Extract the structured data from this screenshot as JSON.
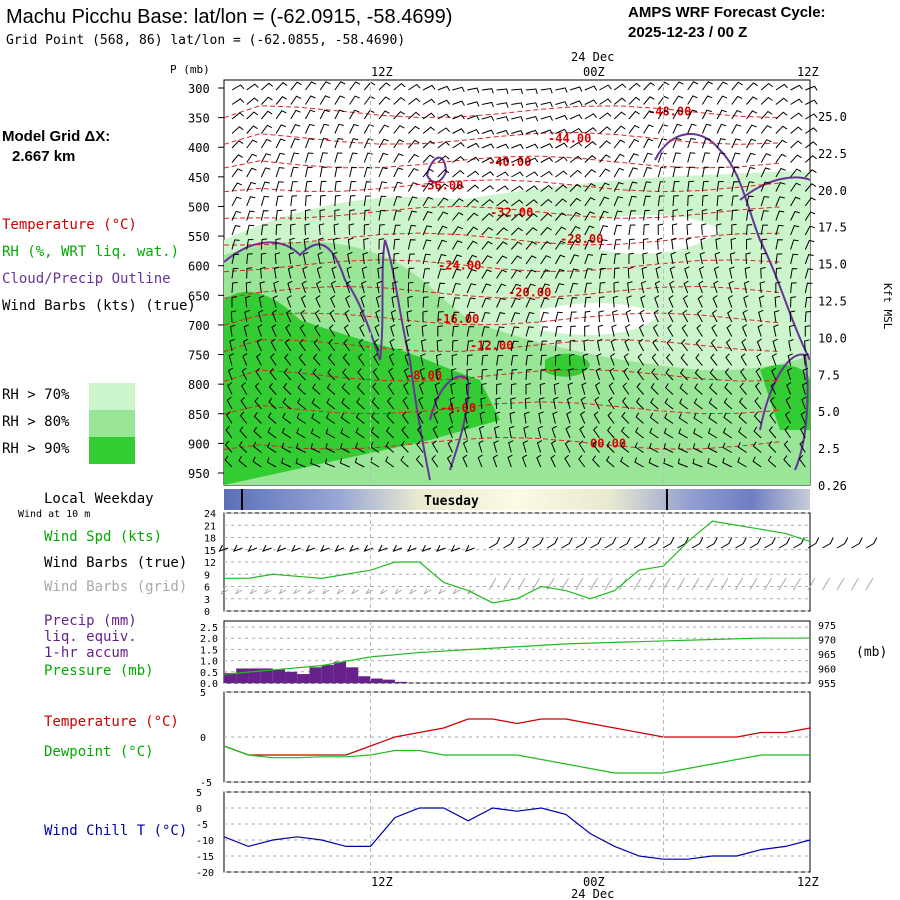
{
  "header": {
    "title": "Machu Picchu Base:  lat/lon = (-62.0915, -58.4699)",
    "subtitle": "Grid Point (568, 86) lat/lon = (-62.0855, -58.4690)",
    "cycle_line1": "AMPS WRF Forecast Cycle:",
    "cycle_line2": "2025-12-23 / 00  Z"
  },
  "left_panel": {
    "model_grid_label": "Model Grid ΔX:",
    "model_grid_value": "2.667 km",
    "legend_temperature": "Temperature (°C)",
    "legend_rh": "RH (%, WRT liq. wat.)",
    "legend_cloud": "Cloud/Precip Outline",
    "legend_wind": "Wind Barbs (kts) (true)",
    "rh_70": "RH > 70%",
    "rh_80": "RH > 80%",
    "rh_90": "RH > 90%",
    "local_weekday": "Local Weekday",
    "wind_at_10m": "Wind at 10 m",
    "wind_spd": "Wind Spd (kts)",
    "wind_barbs_true": "Wind Barbs (true)",
    "wind_barbs_grid": "Wind Barbs (grid)",
    "precip_line1": "Precip (mm)",
    "precip_line2": "liq. equiv.",
    "precip_line3": "1-hr accum",
    "pressure": "Pressure (mb)",
    "temperature": "Temperature (°C)",
    "dewpoint": "Dewpoint (°C)",
    "wind_chill": "Wind Chill T (°C)"
  },
  "axes": {
    "p_label": "P (mb)",
    "time_top": [
      "12Z",
      "00Z",
      "12Z"
    ],
    "date_label": "24 Dec",
    "time_bottom": [
      "12Z",
      "00Z",
      "12Z"
    ],
    "pressure_ticks": [
      "300",
      "350",
      "400",
      "450",
      "500",
      "550",
      "600",
      "650",
      "700",
      "750",
      "800",
      "850",
      "900",
      "950"
    ],
    "kft_ticks": [
      "25.0",
      "22.5",
      "20.0",
      "17.5",
      "15.0",
      "12.5",
      "10.0",
      "7.5",
      "5.0",
      "2.5",
      "0.26"
    ],
    "kft_label": "Kft MSL",
    "weekday": "Tuesday",
    "wind_ticks": [
      "24",
      "21",
      "18",
      "15",
      "12",
      "9",
      "6",
      "3",
      "0"
    ],
    "precip_ticks": [
      "2.5",
      "2.0",
      "1.5",
      "1.0",
      "0.5",
      "0.0"
    ],
    "pres_ticks": [
      "975",
      "970",
      "965",
      "960",
      "955"
    ],
    "pres_unit": "(mb)",
    "temp_ticks": [
      "5",
      "0",
      "-5"
    ],
    "chill_ticks": [
      "5",
      "0",
      "-5",
      "-10",
      "-15",
      "-20"
    ]
  },
  "colors": {
    "temperature": "#cc0000",
    "rh_label": "#00aa00",
    "cloud": "#663399",
    "rh70": "#ccf5cc",
    "rh80": "#99e699",
    "rh90": "#33cc33",
    "wind_chill": "#0000aa",
    "pressure": "#22bb22",
    "dewpoint": "#22bb22",
    "grid_barbs": "#aaaaaa",
    "precip": "#662288"
  },
  "chart_data": [
    {
      "type": "heatmap",
      "panel": "Time-height cross section",
      "ylabel": "P (mb)",
      "ylim": [
        300,
        970
      ],
      "secondary_ylabel": "Kft MSL",
      "temperature_contour_labels": [
        "-48.00",
        "-44.00",
        "-40.00",
        "-36.00",
        "-32.00",
        "-28.00",
        "-24.00",
        "-20.00",
        "-16.00",
        "-12.00",
        "-8.00",
        "-4.00",
        "00.00"
      ]
    },
    {
      "type": "line",
      "panel": "Wind at 10 m",
      "ylim": [
        0,
        24
      ],
      "series": [
        {
          "name": "Wind Spd (kts)",
          "x": [
            0,
            2,
            4,
            6,
            8,
            10,
            12,
            14,
            16,
            18,
            20,
            22,
            24,
            26,
            28,
            30,
            32,
            34,
            36,
            38,
            40,
            42,
            44,
            46,
            48
          ],
          "values": [
            8,
            8,
            9,
            8.5,
            8,
            9,
            10,
            12,
            12,
            7,
            5,
            2,
            3,
            6,
            5,
            3,
            5,
            10,
            11,
            17,
            22,
            21,
            20,
            19,
            17
          ]
        }
      ]
    },
    {
      "type": "bar",
      "panel": "Precip (mm) liq. equiv. 1-hr accum",
      "ylim": [
        0,
        2.5
      ],
      "x": [
        0,
        1,
        2,
        3,
        4,
        5,
        6,
        7,
        8,
        9,
        10,
        11,
        12,
        13,
        14
      ],
      "values": [
        0.45,
        0.65,
        0.65,
        0.65,
        0.6,
        0.5,
        0.4,
        0.7,
        0.8,
        0.95,
        0.7,
        0.3,
        0.2,
        0.15,
        0.05
      ]
    },
    {
      "type": "line",
      "panel": "Pressure (mb)",
      "ylim": [
        955,
        975
      ],
      "series": [
        {
          "name": "Pressure (mb)",
          "x": [
            0,
            4,
            8,
            12,
            16,
            20,
            24,
            28,
            32,
            36,
            40,
            44,
            48
          ],
          "values": [
            958,
            959.5,
            961,
            964,
            965.5,
            966.5,
            967.5,
            968.5,
            969,
            969.5,
            970,
            970.5,
            970.5
          ]
        }
      ]
    },
    {
      "type": "line",
      "panel": "Temperature / Dewpoint",
      "ylim": [
        -5,
        5
      ],
      "series": [
        {
          "name": "Temperature (°C)",
          "x": [
            0,
            2,
            4,
            6,
            8,
            10,
            12,
            14,
            16,
            18,
            20,
            22,
            24,
            26,
            28,
            30,
            32,
            34,
            36,
            38,
            40,
            42,
            44,
            46,
            48
          ],
          "values": [
            -1,
            -2,
            -2,
            -2,
            -2,
            -2,
            -1,
            0,
            0.5,
            1,
            2,
            2,
            1.5,
            2,
            2,
            1.5,
            1,
            0.5,
            0,
            0,
            0,
            0,
            0.5,
            0.5,
            1
          ]
        },
        {
          "name": "Dewpoint (°C)",
          "x": [
            0,
            2,
            4,
            6,
            8,
            10,
            12,
            14,
            16,
            18,
            20,
            22,
            24,
            26,
            28,
            30,
            32,
            34,
            36,
            38,
            40,
            42,
            44,
            46,
            48
          ],
          "values": [
            -1,
            -2,
            -2.3,
            -2.3,
            -2.2,
            -2.2,
            -2,
            -1.5,
            -1.5,
            -2,
            -2,
            -2,
            -2,
            -2.5,
            -3,
            -3.5,
            -4,
            -4,
            -4,
            -3.5,
            -3,
            -2.5,
            -2,
            -2,
            -2
          ]
        }
      ]
    },
    {
      "type": "line",
      "panel": "Wind Chill T",
      "ylim": [
        -20,
        5
      ],
      "series": [
        {
          "name": "Wind Chill T (°C)",
          "x": [
            0,
            2,
            4,
            6,
            8,
            10,
            12,
            14,
            16,
            18,
            20,
            22,
            24,
            26,
            28,
            30,
            32,
            34,
            36,
            38,
            40,
            42,
            44,
            46,
            48
          ],
          "values": [
            -9,
            -12,
            -10,
            -9,
            -10,
            -12,
            -12,
            -3,
            0,
            0,
            -4,
            0,
            -1,
            0,
            -2,
            -8,
            -12,
            -15,
            -16,
            -16,
            -15,
            -15,
            -13,
            -12,
            -10
          ]
        }
      ]
    }
  ]
}
